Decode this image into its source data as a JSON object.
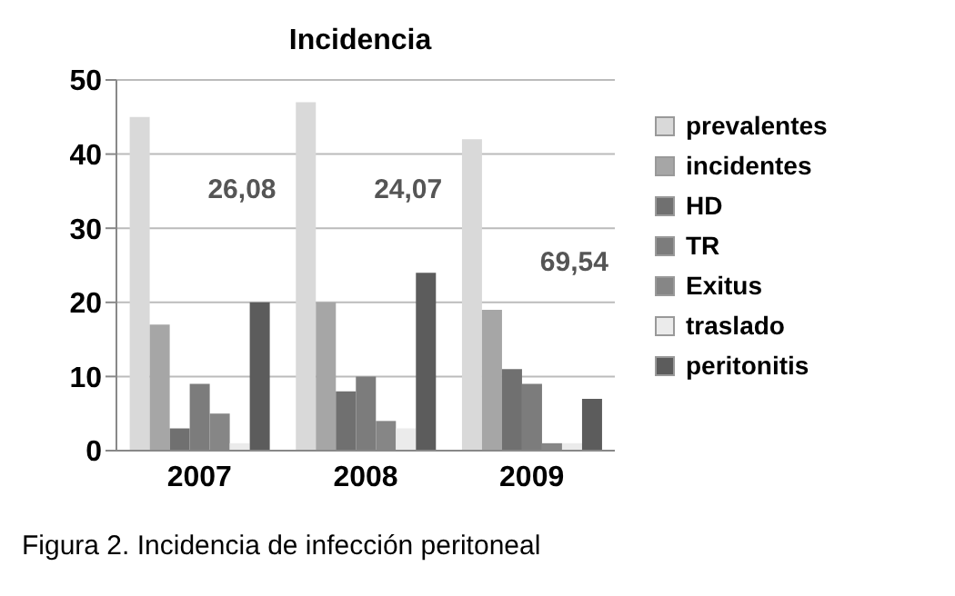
{
  "chart_data": {
    "type": "bar",
    "title": "Incidencia",
    "categories": [
      "2007",
      "2008",
      "2009"
    ],
    "series": [
      {
        "name": "prevalentes",
        "color": "#d9d9d9",
        "values": [
          45,
          47,
          42
        ]
      },
      {
        "name": "incidentes",
        "color": "#a6a6a6",
        "values": [
          17,
          20,
          19
        ]
      },
      {
        "name": "HD",
        "color": "#707070",
        "values": [
          3,
          8,
          11
        ]
      },
      {
        "name": "TR",
        "color": "#7c7c7c",
        "values": [
          9,
          10,
          9
        ]
      },
      {
        "name": "Exitus",
        "color": "#868686",
        "values": [
          5,
          4,
          1
        ]
      },
      {
        "name": "traslado",
        "color": "#ebebeb",
        "values": [
          1,
          3,
          1
        ]
      },
      {
        "name": "peritonitis",
        "color": "#5c5c5c",
        "values": [
          20,
          24,
          7
        ]
      }
    ],
    "ylim": [
      0,
      50
    ],
    "yticks": [
      0,
      10,
      20,
      30,
      40,
      50
    ],
    "grid": "y",
    "legend": "right",
    "annotations": [
      "26,08",
      "24,07",
      "69,54",
      "Figura 2. Incidencia de infección peritoneal"
    ]
  }
}
